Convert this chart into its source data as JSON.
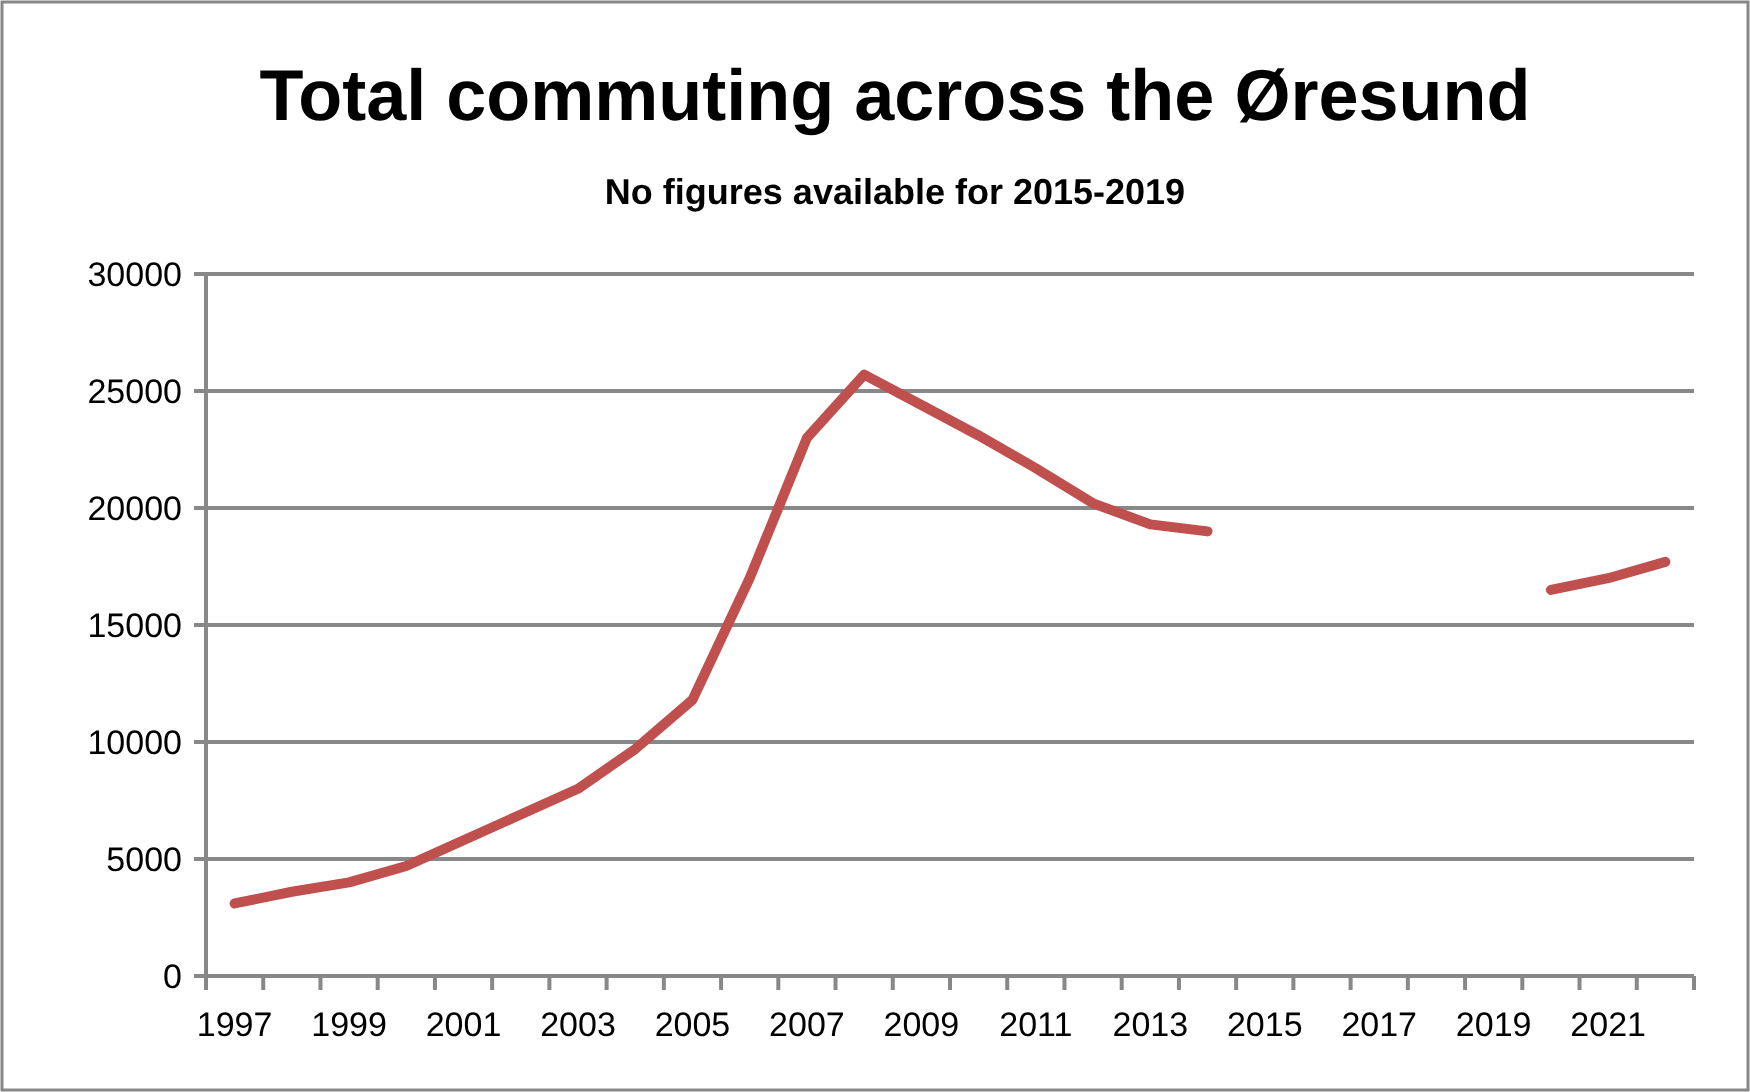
{
  "chart_data": {
    "type": "line",
    "title": "Total commuting across the Øresund",
    "subtitle": "No figures available for 2015-2019",
    "categories": [
      "1997",
      null,
      "1999",
      null,
      "2001",
      null,
      "2003",
      null,
      "2005",
      null,
      "2007",
      null,
      "2009",
      null,
      "2011",
      null,
      "2013",
      null,
      "2015",
      null,
      "2017",
      null,
      "2019",
      null,
      "2021",
      null
    ],
    "series": [
      {
        "color": "#c0504d",
        "values": [
          3100,
          3600,
          4000,
          4700,
          5800,
          6900,
          8000,
          9700,
          11800,
          17000,
          23000,
          25700,
          24400,
          23100,
          21700,
          20200,
          19300,
          19000,
          null,
          null,
          null,
          null,
          null,
          16500,
          17000,
          17700
        ]
      }
    ],
    "ylim": [
      0,
      30000
    ],
    "yticks": [
      0,
      5000,
      10000,
      15000,
      20000,
      25000,
      30000
    ],
    "grid": "y",
    "marker": "none",
    "line_style": "solid"
  }
}
